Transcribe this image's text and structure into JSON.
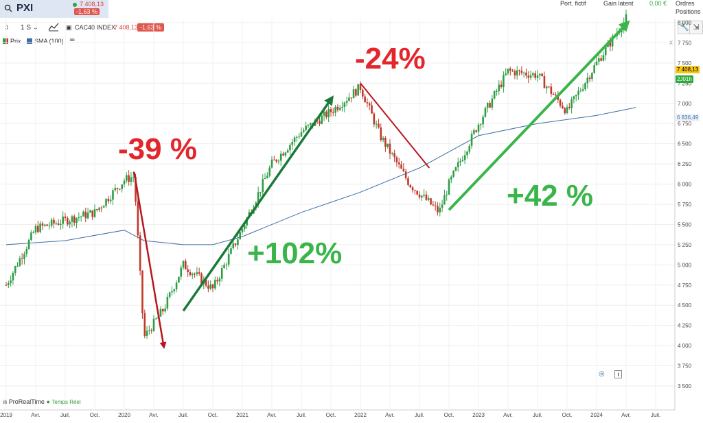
{
  "header": {
    "ticker": "PXI",
    "price": "7 408,13",
    "change": "-1,63 %",
    "right_labels": [
      "Port. fictif",
      "Gain latent",
      "0,00 €",
      "Ordres",
      "Positions"
    ]
  },
  "toolbar": {
    "period": "1 S",
    "instrument": "CAC40 INDEX",
    "price": "7 408,13",
    "change": "-1.63 %"
  },
  "legend": {
    "items": [
      "Prix",
      "SMA (100)"
    ]
  },
  "footer": {
    "provider": "ProRealTime",
    "realtime": "Temps Réel"
  },
  "side_labels": {
    "close_x": "x"
  },
  "colors": {
    "up": "#2e9e44",
    "down": "#c0392b",
    "sma": "#3d6fa3",
    "annot_red": "#e2262c",
    "annot_green": "#3ab54a",
    "arrow_green": "#2e9e3c",
    "arrow_dkgreen": "#1a7a3a",
    "arrow_red": "#b8161e"
  },
  "chart_data": {
    "type": "candlestick",
    "series": [
      {
        "name": "Prix",
        "x": [
          "2019-01",
          "2019-04",
          "2019-07",
          "2019-10",
          "2020-01",
          "2020-02",
          "2020-03",
          "2020-05",
          "2020-07",
          "2020-10",
          "2021-01",
          "2021-04",
          "2021-07",
          "2021-10",
          "2022-01",
          "2022-03",
          "2022-06",
          "2022-09",
          "2022-10",
          "2023-01",
          "2023-04",
          "2023-07",
          "2023-10",
          "2024-01",
          "2024-04"
        ],
        "values": [
          4750,
          5450,
          5550,
          5650,
          6050,
          6100,
          4100,
          4450,
          5000,
          4700,
          5450,
          6250,
          6650,
          6900,
          7200,
          6600,
          6000,
          5650,
          6000,
          6750,
          7400,
          7350,
          6900,
          7500,
          8050
        ]
      },
      {
        "name": "SMA (100)",
        "x": [
          "2019-01",
          "2019-07",
          "2020-01",
          "2020-03",
          "2020-07",
          "2020-10",
          "2021-01",
          "2021-07",
          "2022-01",
          "2022-07",
          "2022-10",
          "2023-01",
          "2023-07",
          "2024-01",
          "2024-05"
        ],
        "values": [
          5250,
          5300,
          5430,
          5300,
          5250,
          5250,
          5350,
          5650,
          5900,
          6200,
          6400,
          6600,
          6750,
          6850,
          6950
        ]
      }
    ],
    "xticks": [
      "2019",
      "Avr.",
      "Juil.",
      "Oct.",
      "2020",
      "Avr.",
      "Juil.",
      "Oct.",
      "2021",
      "Avr.",
      "Juil.",
      "Oct.",
      "2022",
      "Avr.",
      "Juil.",
      "Oct.",
      "2023",
      "Avr.",
      "Juil.",
      "Oct.",
      "2024",
      "Avr.",
      "Juil."
    ],
    "yticks": [
      "3 500",
      "3 750",
      "4 000",
      "4 250",
      "4 500",
      "4 750",
      "5 000",
      "5 250",
      "5 500",
      "5 750",
      "6 000",
      "6 250",
      "6 500",
      "6 750",
      "7 000",
      "7 250",
      "7 500",
      "7 750",
      "8 000"
    ],
    "ylim": [
      3500,
      8050
    ],
    "price_tags": {
      "last": "7 408,13",
      "time": "2J01h",
      "sma": "6 836,49"
    },
    "annotations": [
      "-39 %",
      "-24%",
      "+102%",
      "+42 %"
    ]
  }
}
